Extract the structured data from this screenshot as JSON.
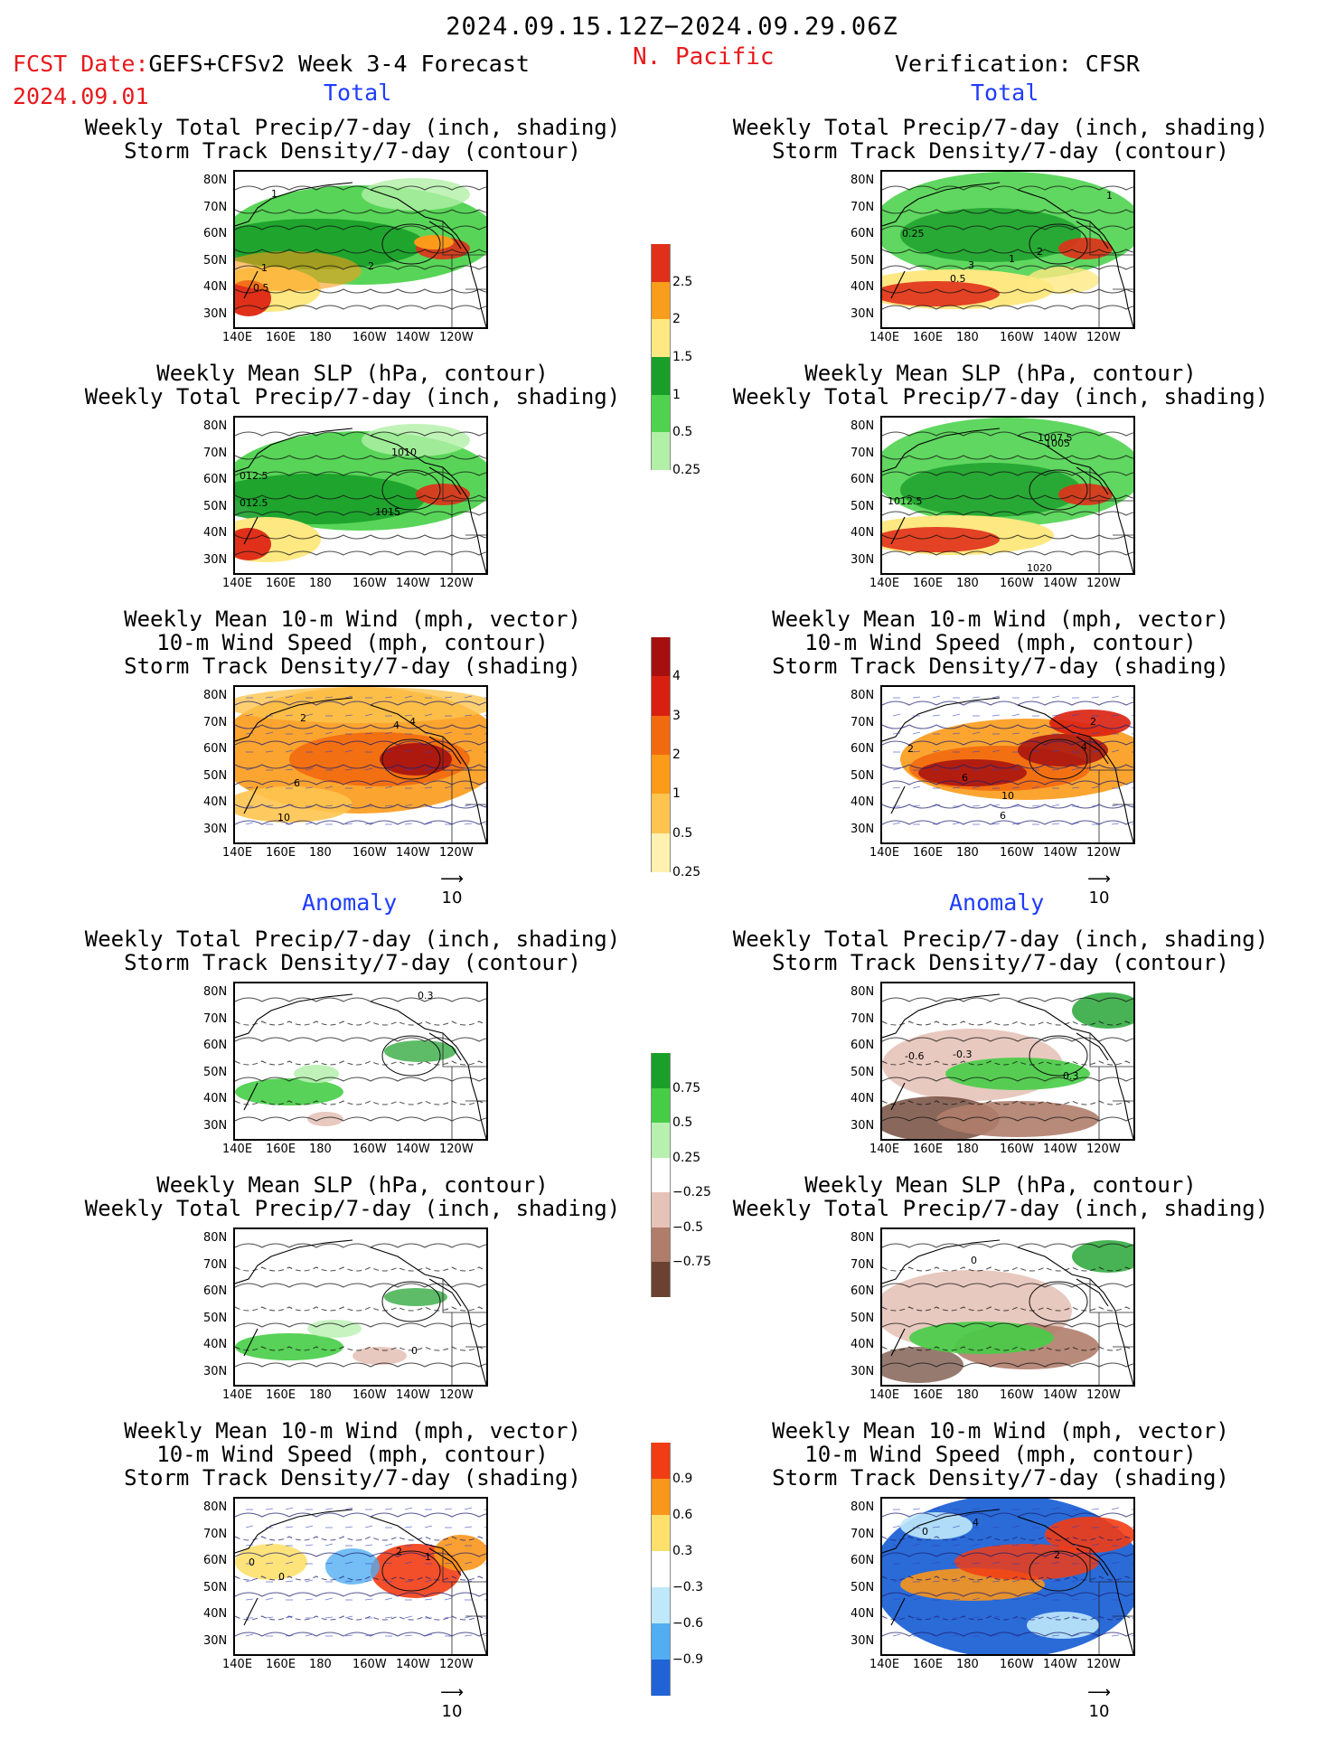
{
  "header": {
    "period": "2024.09.15.12Z−2024.09.29.06Z",
    "fcst_prefix": "FCST Date:",
    "fcst_model": "GEFS+CFSv2 Week 3-4 Forecast",
    "fcst_date": "2024.09.01",
    "region": "N. Pacific",
    "verification": "Verification: CFSR"
  },
  "sections": {
    "total": "Total",
    "anomaly": "Anomaly"
  },
  "titles": {
    "precip_storm": "Weekly Total Precip/7-day (inch, shading)\nStorm Track Density/7-day (contour)",
    "slp_precip": "Weekly Mean SLP (hPa, contour)\nWeekly Total Precip/7-day (inch, shading)",
    "wind_storm": "Weekly Mean 10-m Wind (mph, vector)\n10-m Wind Speed (mph, contour)\nStorm Track Density/7-day (shading)"
  },
  "axes": {
    "lat": [
      "80N",
      "70N",
      "60N",
      "50N",
      "40N",
      "30N"
    ],
    "lon": [
      "140E",
      "160E",
      "180",
      "160W",
      "140W",
      "120W"
    ]
  },
  "vector_ref": "10",
  "colorbars": {
    "precip_total": {
      "labels": [
        "2.5",
        "2",
        "1.5",
        "1",
        "0.5",
        "0.25"
      ],
      "colors": [
        "#e0301a",
        "#f99d1c",
        "#fee882",
        "#1a9e2a",
        "#4fd34f",
        "#b2f0a8"
      ]
    },
    "storm_total": {
      "labels": [
        "4",
        "3",
        "2",
        "1",
        "0.5",
        "0.25"
      ],
      "colors": [
        "#a50f0f",
        "#d92010",
        "#f26a10",
        "#fb9b19",
        "#fec44f",
        "#fff2b0"
      ]
    },
    "precip_anom": {
      "labels": [
        "0.75",
        "0.5",
        "0.25",
        "−0.25",
        "−0.5",
        "−0.75"
      ],
      "colors": [
        "#1aa02a",
        "#46cd46",
        "#b8f0b0",
        "#ffffff",
        "#e6c3b8",
        "#b07d6b",
        "#6b4232"
      ]
    },
    "storm_anom": {
      "labels": [
        "0.9",
        "0.6",
        "0.3",
        "−0.3",
        "−0.6",
        "−0.9"
      ],
      "colors": [
        "#f23c14",
        "#f9961c",
        "#fee06c",
        "#ffffff",
        "#bfe9fb",
        "#51aef2",
        "#1f63d6"
      ]
    }
  },
  "contour_labels": {
    "r1l": [
      "1",
      "2",
      "1",
      "0.5"
    ],
    "r1r": [
      "0.25",
      "3",
      "1",
      "2",
      "0.5",
      "1"
    ],
    "r2l": [
      "1010",
      "012.5",
      "012.5",
      "1015"
    ],
    "r2r": [
      "1007.5",
      "1005",
      "1012.5",
      "1020"
    ],
    "r3l": [
      "2",
      "4",
      "4",
      "6",
      "10"
    ],
    "r3r": [
      "2",
      "4",
      "2",
      "6",
      "10",
      "6"
    ],
    "r4l": [
      "0.3"
    ],
    "r4r": [
      "-0.6",
      "-0.3",
      "0.3"
    ],
    "r5l": [
      "0"
    ],
    "r5r": [
      "0"
    ],
    "r6l": [
      "0",
      "2",
      "1",
      "0"
    ],
    "r6r": [
      "0",
      "4",
      "2"
    ]
  }
}
